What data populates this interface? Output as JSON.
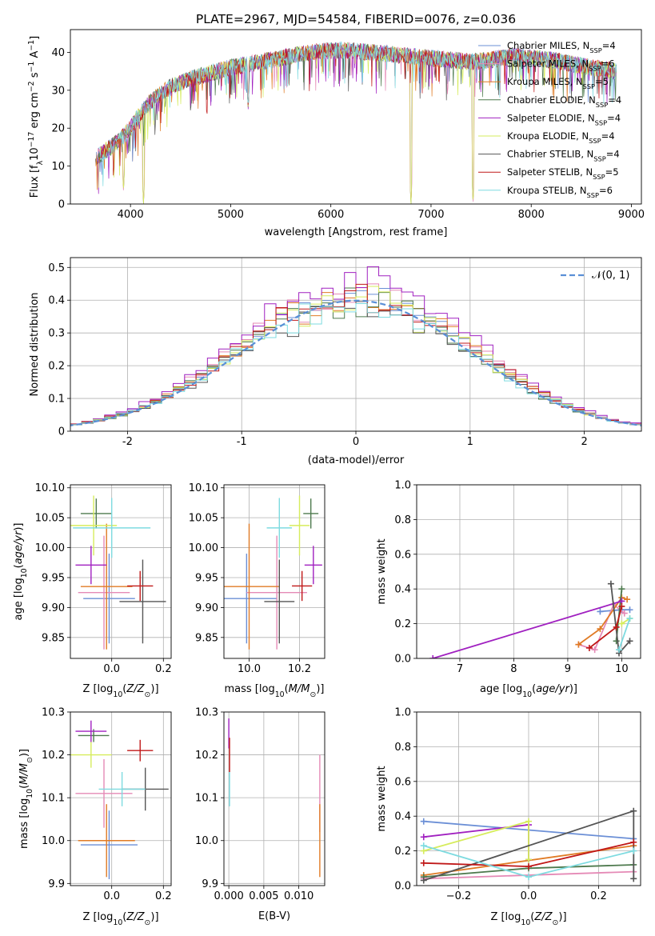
{
  "colors": {
    "Chabrier MILES": "#6b8fd6",
    "Salpeter MILES": "#e58ab6",
    "Kroupa MILES": "#e07b25",
    "Chabrier ELODIE": "#4e7a4e",
    "Salpeter ELODIE": "#a020c0",
    "Kroupa ELODIE": "#d6ec5c",
    "Chabrier STELIB": "#555555",
    "Salpeter STELIB": "#c01818",
    "Kroupa STELIB": "#7edbe0"
  },
  "chart_data": [
    {
      "id": "spectrum",
      "type": "line",
      "title": "PLATE=2967, MJD=54584, FIBERID=0076, z=0.036",
      "xlabel": "wavelength [Angstrom, rest frame]",
      "ylabel": "Flux [f_λ10^-17 erg cm^-2 s^-1 A^-1]",
      "xlim": [
        3400,
        9100
      ],
      "ylim": [
        0,
        46
      ],
      "xticks": [
        4000,
        5000,
        6000,
        7000,
        8000,
        9000
      ],
      "yticks": [
        0,
        10,
        20,
        30,
        40
      ],
      "legend_position": "upper-right",
      "legend": [
        {
          "name": "Chabrier MILES",
          "nssp": "4"
        },
        {
          "name": "Salpeter MILES",
          "nssp": "6"
        },
        {
          "name": "Kroupa MILES",
          "nssp": "5"
        },
        {
          "name": "Chabrier ELODIE",
          "nssp": "4"
        },
        {
          "name": "Salpeter ELODIE",
          "nssp": "4"
        },
        {
          "name": "Kroupa ELODIE",
          "nssp": "4"
        },
        {
          "name": "Chabrier STELIB",
          "nssp": "4"
        },
        {
          "name": "Salpeter STELIB",
          "nssp": "5"
        },
        {
          "name": "Kroupa STELIB",
          "nssp": "6"
        }
      ],
      "continuum_x": [
        3650,
        3700,
        3800,
        3900,
        4000,
        4100,
        4200,
        4300,
        4400,
        4600,
        4800,
        5000,
        5200,
        5400,
        5600,
        5800,
        6000,
        6200,
        6400,
        6600,
        6800,
        7000,
        7200,
        7400,
        7600,
        7800,
        8000,
        8200,
        8400,
        8600,
        8850
      ],
      "continuum_y": [
        12,
        13,
        15,
        17,
        20,
        24,
        27,
        29,
        31,
        33,
        34.5,
        36,
        37,
        38,
        39,
        40,
        40.5,
        40.5,
        40,
        39.5,
        39,
        38.5,
        38,
        37.5,
        38,
        39,
        38.5,
        38,
        37,
        36,
        35
      ],
      "dips": [
        {
          "x": 3930,
          "y": 3
        },
        {
          "x": 4130,
          "y": 0
        },
        {
          "x": 5175,
          "y": 25
        },
        {
          "x": 6800,
          "y": 0
        },
        {
          "x": 7420,
          "y": 0
        }
      ]
    },
    {
      "id": "residuals",
      "type": "histogram",
      "xlabel": "(data-model)/error",
      "ylabel": "Normed distribution",
      "xlim": [
        -2.5,
        2.5
      ],
      "ylim": [
        0,
        0.53
      ],
      "xticks": [
        -2,
        -1,
        0,
        1,
        2
      ],
      "yticks": [
        0.0,
        0.1,
        0.2,
        0.3,
        0.4,
        0.5
      ],
      "grid": true,
      "legend_position": "upper-right",
      "reference_label": "𝒩(0, 1)",
      "bin_width": 0.1,
      "peak_by_model": [
        0.45,
        0.47,
        0.46,
        0.44,
        0.51,
        0.45,
        0.43,
        0.46,
        0.44
      ]
    },
    {
      "id": "age-vs-Z",
      "type": "scatter",
      "xlabel": "Z [log10(Z/Z⊙)]",
      "ylabel": "age  [log10(age/yr)]",
      "xlim": [
        -0.16,
        0.23
      ],
      "ylim": [
        9.815,
        10.105
      ],
      "xticks": [
        "0.0",
        "0.2"
      ],
      "yticks": [
        "9.85",
        "9.90",
        "9.95",
        "10.00",
        "10.05",
        "10.10"
      ],
      "points": [
        {
          "model": "Chabrier MILES",
          "x": -0.01,
          "xerr": 0.1,
          "y": 9.915,
          "yerr": 0.075
        },
        {
          "model": "Salpeter MILES",
          "x": -0.03,
          "xerr": 0.1,
          "y": 9.925,
          "yerr": 0.095
        },
        {
          "model": "Kroupa MILES",
          "x": -0.02,
          "xerr": 0.1,
          "y": 9.935,
          "yerr": 0.105
        },
        {
          "model": "Chabrier ELODIE",
          "x": -0.06,
          "xerr": 0.06,
          "y": 10.057,
          "yerr": 0.025
        },
        {
          "model": "Salpeter ELODIE",
          "x": -0.08,
          "xerr": 0.06,
          "y": 9.971,
          "yerr": 0.032
        },
        {
          "model": "Kroupa ELODIE",
          "x": -0.07,
          "xerr": 0.09,
          "y": 10.037,
          "yerr": 0.05
        },
        {
          "model": "Chabrier STELIB",
          "x": 0.12,
          "xerr": 0.09,
          "y": 9.91,
          "yerr": 0.07
        },
        {
          "model": "Salpeter STELIB",
          "x": 0.11,
          "xerr": 0.05,
          "y": 9.936,
          "yerr": 0.025
        },
        {
          "model": "Kroupa STELIB",
          "x": 0.0,
          "xerr": 0.15,
          "y": 10.033,
          "yerr": 0.05
        }
      ]
    },
    {
      "id": "age-vs-mass",
      "type": "scatter",
      "xlabel": "mass [log10(M/M⊙)]",
      "xlim": [
        9.9,
        10.3
      ],
      "ylim": [
        9.815,
        10.105
      ],
      "xticks": [
        "10.0",
        "10.2"
      ],
      "yticks": [
        "9.85",
        "9.90",
        "9.95",
        "10.00",
        "10.05",
        "10.10"
      ],
      "points": [
        {
          "model": "Chabrier MILES",
          "x": 9.99,
          "xerr": 0.12,
          "y": 9.915,
          "yerr": 0.075
        },
        {
          "model": "Salpeter MILES",
          "x": 10.11,
          "xerr": 0.12,
          "y": 9.925,
          "yerr": 0.095
        },
        {
          "model": "Kroupa MILES",
          "x": 10.0,
          "xerr": 0.12,
          "y": 9.935,
          "yerr": 0.105
        },
        {
          "model": "Chabrier ELODIE",
          "x": 10.245,
          "xerr": 0.03,
          "y": 10.057,
          "yerr": 0.025
        },
        {
          "model": "Salpeter ELODIE",
          "x": 10.255,
          "xerr": 0.035,
          "y": 9.971,
          "yerr": 0.032
        },
        {
          "model": "Kroupa ELODIE",
          "x": 10.2,
          "xerr": 0.04,
          "y": 10.037,
          "yerr": 0.05
        },
        {
          "model": "Chabrier STELIB",
          "x": 10.12,
          "xerr": 0.06,
          "y": 9.91,
          "yerr": 0.07
        },
        {
          "model": "Salpeter STELIB",
          "x": 10.21,
          "xerr": 0.04,
          "y": 9.936,
          "yerr": 0.025
        },
        {
          "model": "Kroupa STELIB",
          "x": 10.12,
          "xerr": 0.05,
          "y": 10.033,
          "yerr": 0.05
        }
      ]
    },
    {
      "id": "weight-vs-age",
      "type": "line",
      "xlabel": "age  [log10(age/yr)]",
      "ylabel": "mass weight",
      "xlim": [
        6.2,
        10.35
      ],
      "ylim": [
        0,
        1
      ],
      "xticks": [
        "7",
        "8",
        "9",
        "10"
      ],
      "yticks": [
        "0.0",
        "0.2",
        "0.4",
        "0.6",
        "0.8",
        "1.0"
      ],
      "grid": true,
      "series": [
        {
          "model": "Chabrier MILES",
          "x": [
            9.6,
            10.0,
            10.15
          ],
          "y": [
            0.27,
            0.28,
            0.28
          ]
        },
        {
          "model": "Salpeter MILES",
          "x": [
            9.2,
            9.5,
            9.85,
            10.05
          ],
          "y": [
            0.08,
            0.05,
            0.31,
            0.26
          ]
        },
        {
          "model": "Kroupa MILES",
          "x": [
            9.2,
            9.6,
            10.0,
            10.1
          ],
          "y": [
            0.08,
            0.17,
            0.35,
            0.34
          ]
        },
        {
          "model": "Chabrier ELODIE",
          "x": [
            9.9,
            10.0
          ],
          "y": [
            0.1,
            0.4
          ]
        },
        {
          "model": "Salpeter ELODIE",
          "x": [
            6.5,
            10.0
          ],
          "y": [
            0.0,
            0.33
          ]
        },
        {
          "model": "Kroupa ELODIE",
          "x": [
            10.0,
            10.15
          ],
          "y": [
            0.2,
            0.23
          ]
        },
        {
          "model": "Chabrier STELIB",
          "x": [
            9.8,
            9.95,
            10.15
          ],
          "y": [
            0.43,
            0.03,
            0.1
          ]
        },
        {
          "model": "Salpeter STELIB",
          "x": [
            9.4,
            9.9,
            10.0
          ],
          "y": [
            0.06,
            0.18,
            0.3
          ]
        },
        {
          "model": "Kroupa STELIB",
          "x": [
            9.95,
            10.15
          ],
          "y": [
            0.05,
            0.23
          ]
        }
      ]
    },
    {
      "id": "mass-vs-Z",
      "type": "scatter",
      "xlabel": "Z [log10(Z/Z⊙)]",
      "ylabel": "mass [log10(M/M⊙)]",
      "xlim": [
        -0.16,
        0.23
      ],
      "ylim": [
        9.895,
        10.3
      ],
      "xticks": [
        "0.0",
        "0.2"
      ],
      "yticks": [
        "9.9",
        "10.0",
        "10.1",
        "10.2",
        "10.3"
      ],
      "points": [
        {
          "model": "Chabrier MILES",
          "x": -0.01,
          "xerr": 0.11,
          "y": 9.99,
          "yerr": 0.08
        },
        {
          "model": "Salpeter MILES",
          "x": -0.03,
          "xerr": 0.11,
          "y": 10.11,
          "yerr": 0.08
        },
        {
          "model": "Kroupa MILES",
          "x": -0.02,
          "xerr": 0.11,
          "y": 10.0,
          "yerr": 0.085
        },
        {
          "model": "Chabrier ELODIE",
          "x": -0.07,
          "xerr": 0.06,
          "y": 10.245,
          "yerr": 0.015
        },
        {
          "model": "Salpeter ELODIE",
          "x": -0.08,
          "xerr": 0.06,
          "y": 10.255,
          "yerr": 0.025
        },
        {
          "model": "Kroupa ELODIE",
          "x": -0.08,
          "xerr": 0.08,
          "y": 10.2,
          "yerr": 0.03
        },
        {
          "model": "Chabrier STELIB",
          "x": 0.13,
          "xerr": 0.09,
          "y": 10.12,
          "yerr": 0.05
        },
        {
          "model": "Salpeter STELIB",
          "x": 0.11,
          "xerr": 0.05,
          "y": 10.21,
          "yerr": 0.025
        },
        {
          "model": "Kroupa STELIB",
          "x": 0.04,
          "xerr": 0.09,
          "y": 10.12,
          "yerr": 0.04
        }
      ]
    },
    {
      "id": "mass-vs-ebv",
      "type": "scatter",
      "xlabel": "E(B-V)",
      "xlim": [
        -0.0007,
        0.0137
      ],
      "ylim": [
        9.895,
        10.3
      ],
      "xticks": [
        "0.000",
        "0.005",
        "0.010"
      ],
      "yticks": [
        "9.9",
        "10.0",
        "10.1",
        "10.2",
        "10.3"
      ],
      "points": [
        {
          "model": "Salpeter ELODIE",
          "x": 0.0,
          "xerr": 0,
          "y": 10.25,
          "yerr": 0.035
        },
        {
          "model": "Salpeter STELIB",
          "x": 0.0001,
          "xerr": 0,
          "y": 10.2,
          "yerr": 0.04
        },
        {
          "model": "Kroupa STELIB",
          "x": 0.0001,
          "xerr": 0,
          "y": 10.12,
          "yerr": 0.04
        },
        {
          "model": "Salpeter MILES",
          "x": 0.013,
          "xerr": 0,
          "y": 10.11,
          "yerr": 0.09
        },
        {
          "model": "Kroupa MILES",
          "x": 0.013,
          "xerr": 0,
          "y": 10.0,
          "yerr": 0.085
        }
      ]
    },
    {
      "id": "weight-vs-Z",
      "type": "line",
      "xlabel": "Z [log10(Z/Z⊙)]",
      "ylabel": "mass weight",
      "xlim": [
        -0.32,
        0.32
      ],
      "ylim": [
        0,
        1
      ],
      "xticks": [
        "−0.2",
        "0.0",
        "0.2"
      ],
      "yticks": [
        "0.0",
        "0.2",
        "0.4",
        "0.6",
        "0.8",
        "1.0"
      ],
      "grid": true,
      "series": [
        {
          "model": "Chabrier MILES",
          "x": [
            -0.3,
            0.3
          ],
          "y": [
            0.37,
            0.27
          ]
        },
        {
          "model": "Salpeter MILES",
          "x": [
            -0.3,
            0.3
          ],
          "y": [
            0.04,
            0.08
          ]
        },
        {
          "model": "Kroupa MILES",
          "x": [
            -0.3,
            0.3
          ],
          "y": [
            0.06,
            0.23
          ]
        },
        {
          "model": "Chabrier ELODIE",
          "x": [
            -0.3,
            0.0,
            0.3
          ],
          "y": [
            0.05,
            0.1,
            0.12
          ]
        },
        {
          "model": "Salpeter ELODIE",
          "x": [
            -0.3,
            0.0,
            0.0
          ],
          "y": [
            0.28,
            0.35,
            0.15
          ]
        },
        {
          "model": "Kroupa ELODIE",
          "x": [
            -0.3,
            0.0,
            0.0
          ],
          "y": [
            0.2,
            0.37,
            0.15
          ]
        },
        {
          "model": "Chabrier STELIB",
          "x": [
            -0.3,
            0.3,
            0.3
          ],
          "y": [
            0.03,
            0.43,
            0.04
          ]
        },
        {
          "model": "Salpeter STELIB",
          "x": [
            -0.3,
            0.0,
            0.3
          ],
          "y": [
            0.13,
            0.11,
            0.25
          ]
        },
        {
          "model": "Kroupa STELIB",
          "x": [
            -0.3,
            0.0,
            0.3
          ],
          "y": [
            0.23,
            0.05,
            0.2
          ]
        }
      ]
    }
  ]
}
